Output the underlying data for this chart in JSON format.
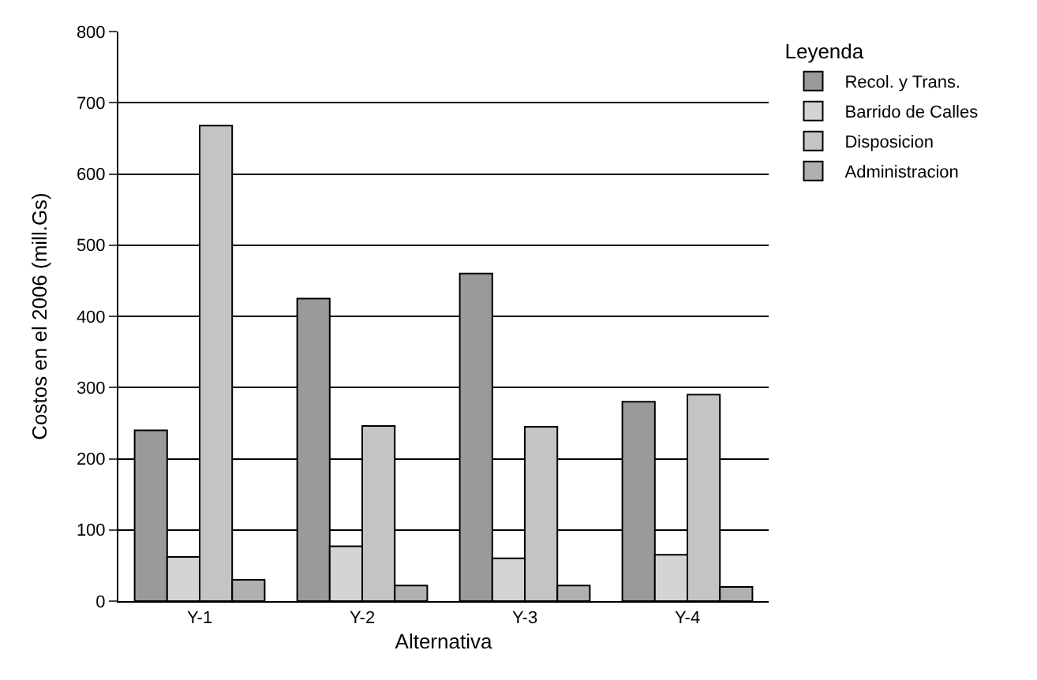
{
  "chart_data": {
    "type": "bar",
    "categories": [
      "Y-1",
      "Y-2",
      "Y-3",
      "Y-4"
    ],
    "xlabel": "Alternativa",
    "ylabel": "Costos en el 2006 (mill.Gs)",
    "legend_title": "Leyenda",
    "series": [
      {
        "name": "Recol. y Trans.",
        "color": "#9a9a9a",
        "values": [
          240,
          425,
          460,
          280
        ]
      },
      {
        "name": "Barrido de Calles",
        "color": "#d4d4d4",
        "values": [
          62,
          77,
          60,
          65
        ]
      },
      {
        "name": "Disposicion",
        "color": "#c4c4c4",
        "values": [
          668,
          246,
          245,
          290
        ]
      },
      {
        "name": "Administracion",
        "color": "#b0b0b0",
        "values": [
          30,
          22,
          22,
          20
        ]
      }
    ],
    "ylim": [
      0,
      800
    ],
    "yticks": [
      0,
      100,
      200,
      300,
      400,
      500,
      600,
      700,
      800
    ],
    "grid": "y",
    "legend": "top right"
  }
}
